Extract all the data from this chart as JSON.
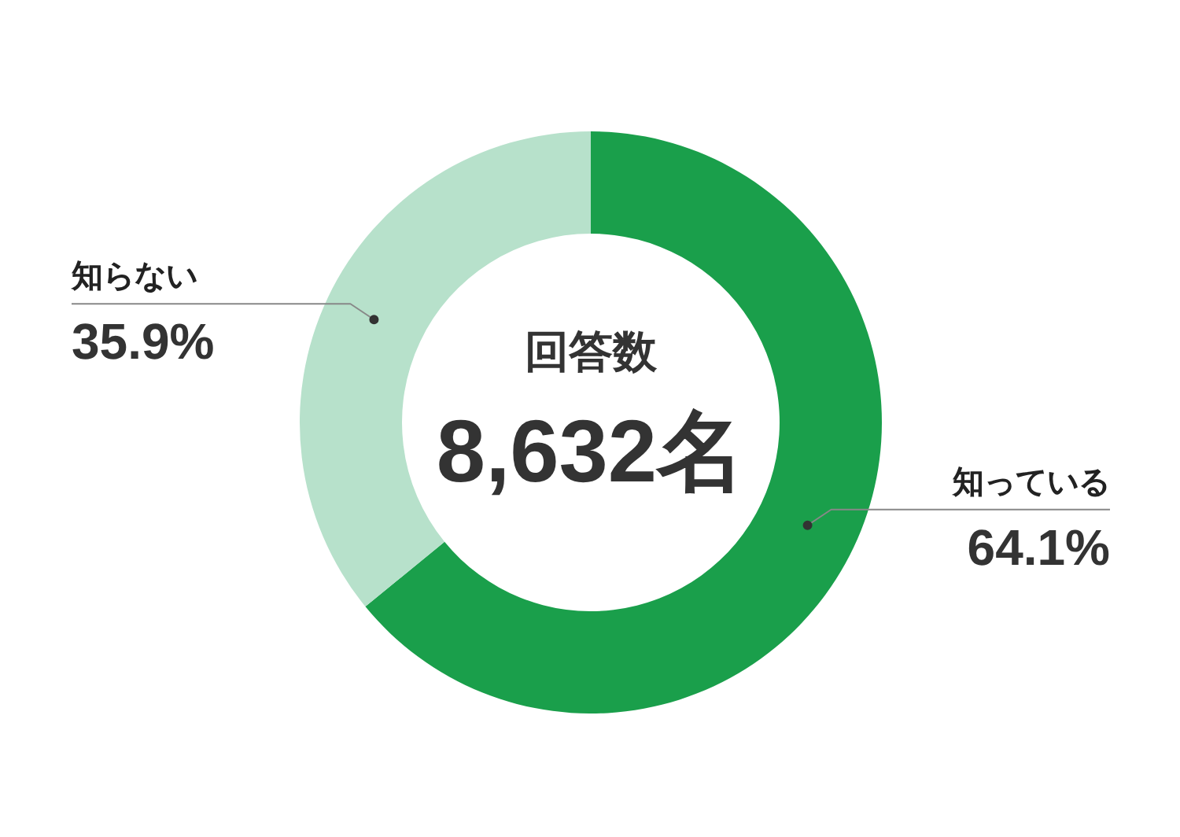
{
  "chart_data": {
    "type": "donut",
    "categories": [
      "知っている",
      "知らない"
    ],
    "values": [
      64.1,
      35.9
    ],
    "colors": [
      "#1a9f4b",
      "#b7e1cb"
    ],
    "value_labels": [
      "64.1%",
      "35.9%"
    ],
    "annotations": [
      "回答数",
      "8,632名"
    ]
  }
}
